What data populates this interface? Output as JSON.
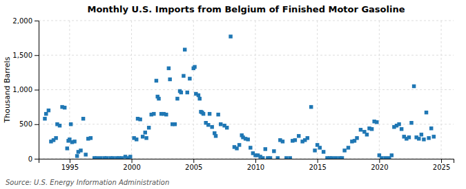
{
  "chart_data": {
    "type": "scatter",
    "title": "Monthly U.S. Imports from Belgium of Finished Motor Gasoline",
    "y_label": "Thousand Barrels",
    "source": "Source: U.S. Energy Information Administration",
    "marker": "square",
    "grid": true,
    "xlim": [
      1992.5,
      2026.0
    ],
    "ylim": [
      0,
      2000
    ],
    "xticks": [
      1995,
      2000,
      2005,
      2010,
      2015,
      2020,
      2025
    ],
    "yticks": [
      0,
      500,
      {
        "value": 1000,
        "label": "1,000"
      },
      {
        "value": 1500,
        "label": "1,500"
      },
      {
        "value": 2000,
        "label": "2,000"
      }
    ],
    "x": [
      1993.0,
      1993.1,
      1993.3,
      1993.5,
      1993.7,
      1993.9,
      1994.0,
      1994.2,
      1994.4,
      1994.6,
      1994.8,
      1994.9,
      1995.0,
      1995.1,
      1995.2,
      1995.4,
      1995.6,
      1995.7,
      1995.9,
      1996.1,
      1996.3,
      1996.5,
      1996.7,
      1997.0,
      1997.2,
      1997.5,
      1997.8,
      1998.0,
      1998.3,
      1998.5,
      1998.8,
      1999.0,
      1999.2,
      1999.5,
      1999.7,
      1999.9,
      2000.2,
      2000.4,
      2000.5,
      2000.7,
      2000.9,
      2001.1,
      2001.2,
      2001.4,
      2001.6,
      2001.8,
      2002.0,
      2002.1,
      2002.2,
      2002.4,
      2002.6,
      2002.8,
      2003.0,
      2003.1,
      2003.3,
      2003.5,
      2003.7,
      2003.9,
      2004.0,
      2004.2,
      2004.3,
      2004.5,
      2004.7,
      2005.0,
      2005.1,
      2005.2,
      2005.4,
      2005.5,
      2005.6,
      2005.7,
      2005.8,
      2006.0,
      2006.2,
      2006.3,
      2006.5,
      2006.7,
      2006.8,
      2007.0,
      2007.2,
      2007.5,
      2007.7,
      2008.0,
      2008.3,
      2008.5,
      2008.7,
      2008.9,
      2009.0,
      2009.2,
      2009.4,
      2009.6,
      2009.8,
      2010.0,
      2010.2,
      2010.4,
      2010.6,
      2010.8,
      2011.0,
      2011.2,
      2011.5,
      2011.8,
      2012.0,
      2012.2,
      2012.5,
      2012.8,
      2013.0,
      2013.2,
      2013.5,
      2013.8,
      2014.0,
      2014.2,
      2014.5,
      2014.8,
      2015.0,
      2015.2,
      2015.5,
      2015.8,
      2016.0,
      2016.2,
      2016.5,
      2016.8,
      2017.0,
      2017.2,
      2017.5,
      2017.8,
      2018.0,
      2018.2,
      2018.5,
      2018.8,
      2019.0,
      2019.2,
      2019.4,
      2019.6,
      2019.8,
      2020.0,
      2020.2,
      2020.5,
      2020.8,
      2021.0,
      2021.2,
      2021.4,
      2021.6,
      2021.8,
      2022.0,
      2022.2,
      2022.4,
      2022.6,
      2022.8,
      2023.0,
      2023.2,
      2023.4,
      2023.6,
      2023.8,
      2024.0,
      2024.2,
      2024.4
    ],
    "values": [
      580,
      650,
      700,
      250,
      270,
      300,
      500,
      480,
      750,
      740,
      150,
      260,
      280,
      500,
      240,
      250,
      40,
      100,
      120,
      580,
      60,
      290,
      300,
      10,
      10,
      10,
      10,
      10,
      10,
      10,
      10,
      10,
      10,
      30,
      10,
      30,
      300,
      280,
      580,
      570,
      320,
      380,
      300,
      450,
      640,
      650,
      1130,
      900,
      870,
      650,
      650,
      640,
      1310,
      1150,
      500,
      500,
      870,
      980,
      960,
      1200,
      1580,
      960,
      1160,
      1310,
      1330,
      940,
      920,
      870,
      680,
      670,
      650,
      520,
      490,
      650,
      460,
      370,
      330,
      640,
      500,
      480,
      450,
      1770,
      170,
      150,
      200,
      340,
      310,
      290,
      280,
      160,
      80,
      50,
      50,
      30,
      10,
      140,
      10,
      10,
      110,
      10,
      270,
      250,
      10,
      10,
      260,
      270,
      330,
      250,
      270,
      300,
      750,
      120,
      200,
      160,
      100,
      10,
      10,
      10,
      10,
      10,
      10,
      120,
      160,
      250,
      260,
      300,
      420,
      390,
      350,
      440,
      430,
      540,
      530,
      50,
      10,
      10,
      10,
      50,
      460,
      480,
      500,
      430,
      320,
      290,
      310,
      520,
      1050,
      310,
      290,
      350,
      280,
      670,
      300,
      440,
      320
    ]
  }
}
